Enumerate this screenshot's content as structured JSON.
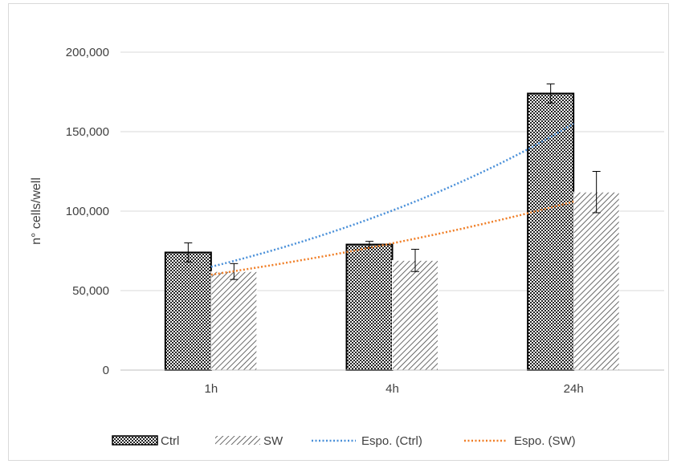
{
  "chart_data": {
    "type": "bar",
    "title": "",
    "xlabel": "",
    "ylabel": "n° cells/well",
    "categories": [
      "1h",
      "4h",
      "24h"
    ],
    "ylim": [
      0,
      200000
    ],
    "yticks": [
      0,
      50000,
      100000,
      150000,
      200000
    ],
    "ytick_labels": [
      "0",
      "50,000",
      "100,000",
      "150,000",
      "200,000"
    ],
    "grid": true,
    "legend_position": "bottom",
    "series": [
      {
        "name": "Ctrl",
        "values": [
          74000,
          79000,
          174000
        ],
        "errors": [
          6000,
          2000,
          6000
        ],
        "pattern": "checker",
        "border": "#000000"
      },
      {
        "name": "SW",
        "values": [
          62000,
          69000,
          112000
        ],
        "errors": [
          5000,
          7000,
          13000
        ],
        "pattern": "diagonal",
        "border": "#ffffff"
      }
    ],
    "trendlines": [
      {
        "name": "Espo. (Ctrl)",
        "type": "exponential",
        "color": "#4a90d9",
        "points": [
          [
            0,
            65000
          ],
          [
            1,
            100000
          ],
          [
            2,
            155000
          ]
        ]
      },
      {
        "name": "Espo. (SW)",
        "type": "exponential",
        "color": "#f07e26",
        "points": [
          [
            0,
            60000
          ],
          [
            1,
            80000
          ],
          [
            2,
            106000
          ]
        ]
      }
    ]
  }
}
